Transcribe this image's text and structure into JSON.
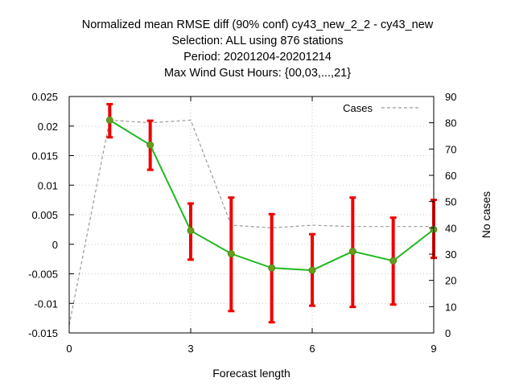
{
  "chart_data": {
    "type": "line",
    "title_lines": [
      "Normalized mean RMSE diff (90% conf) cy43_new_2_2 - cy43_new",
      "Selection: ALL using   876 stations",
      "Period: 20201204-20201214",
      "Max Wind Gust   Hours: {00,03,...,21}"
    ],
    "xlabel": "Forecast length",
    "ylabel": "",
    "y2label": "No cases",
    "xlim": [
      0,
      9
    ],
    "ylim": [
      -0.015,
      0.025
    ],
    "y2lim": [
      0,
      90
    ],
    "x_ticks": [
      0,
      3,
      6,
      9
    ],
    "x_tick_labels": [
      "0",
      "3",
      "6",
      "9"
    ],
    "y_ticks": [
      -0.015,
      -0.01,
      -0.005,
      0,
      0.005,
      0.01,
      0.015,
      0.02,
      0.025
    ],
    "y_tick_labels": [
      "-0.015",
      "-0.01",
      "-0.005",
      "0",
      "0.005",
      "0.01",
      "0.015",
      "0.02",
      "0.025"
    ],
    "y2_ticks": [
      0,
      10,
      20,
      30,
      40,
      50,
      60,
      70,
      80,
      90
    ],
    "y2_tick_labels": [
      "0",
      "10",
      "20",
      "30",
      "40",
      "50",
      "60",
      "70",
      "80",
      "90"
    ],
    "grid": true,
    "legend_position": "top-right",
    "series": [
      {
        "name": "",
        "axis": "left",
        "style": "line-markers-errorbars",
        "color": "#1fb91f",
        "marker_color": "#6b9b1c",
        "errorbar_color": "#ee0000",
        "x": [
          1,
          2,
          3,
          4,
          5,
          6,
          7,
          8,
          9
        ],
        "y": [
          0.021,
          0.0168,
          0.0023,
          -0.0016,
          -0.004,
          -0.0044,
          -0.0012,
          -0.0028,
          0.0025
        ],
        "y_low": [
          0.0181,
          0.0126,
          -0.0026,
          -0.0113,
          -0.0132,
          -0.0104,
          -0.0106,
          -0.0102,
          -0.0023
        ],
        "y_high": [
          0.0237,
          0.0209,
          0.0069,
          0.0079,
          0.0051,
          0.0017,
          0.0079,
          0.0045,
          0.0075
        ]
      },
      {
        "name": "Cases",
        "axis": "right",
        "style": "dashed",
        "color": "#999999",
        "x": [
          0,
          1,
          2,
          3,
          4,
          5,
          6,
          7,
          8,
          9
        ],
        "y": [
          3,
          81,
          80,
          81,
          41,
          40,
          41,
          40.5,
          40.5,
          40.5
        ]
      }
    ],
    "legend": [
      {
        "label": "Cases",
        "series": "Cases"
      }
    ]
  }
}
